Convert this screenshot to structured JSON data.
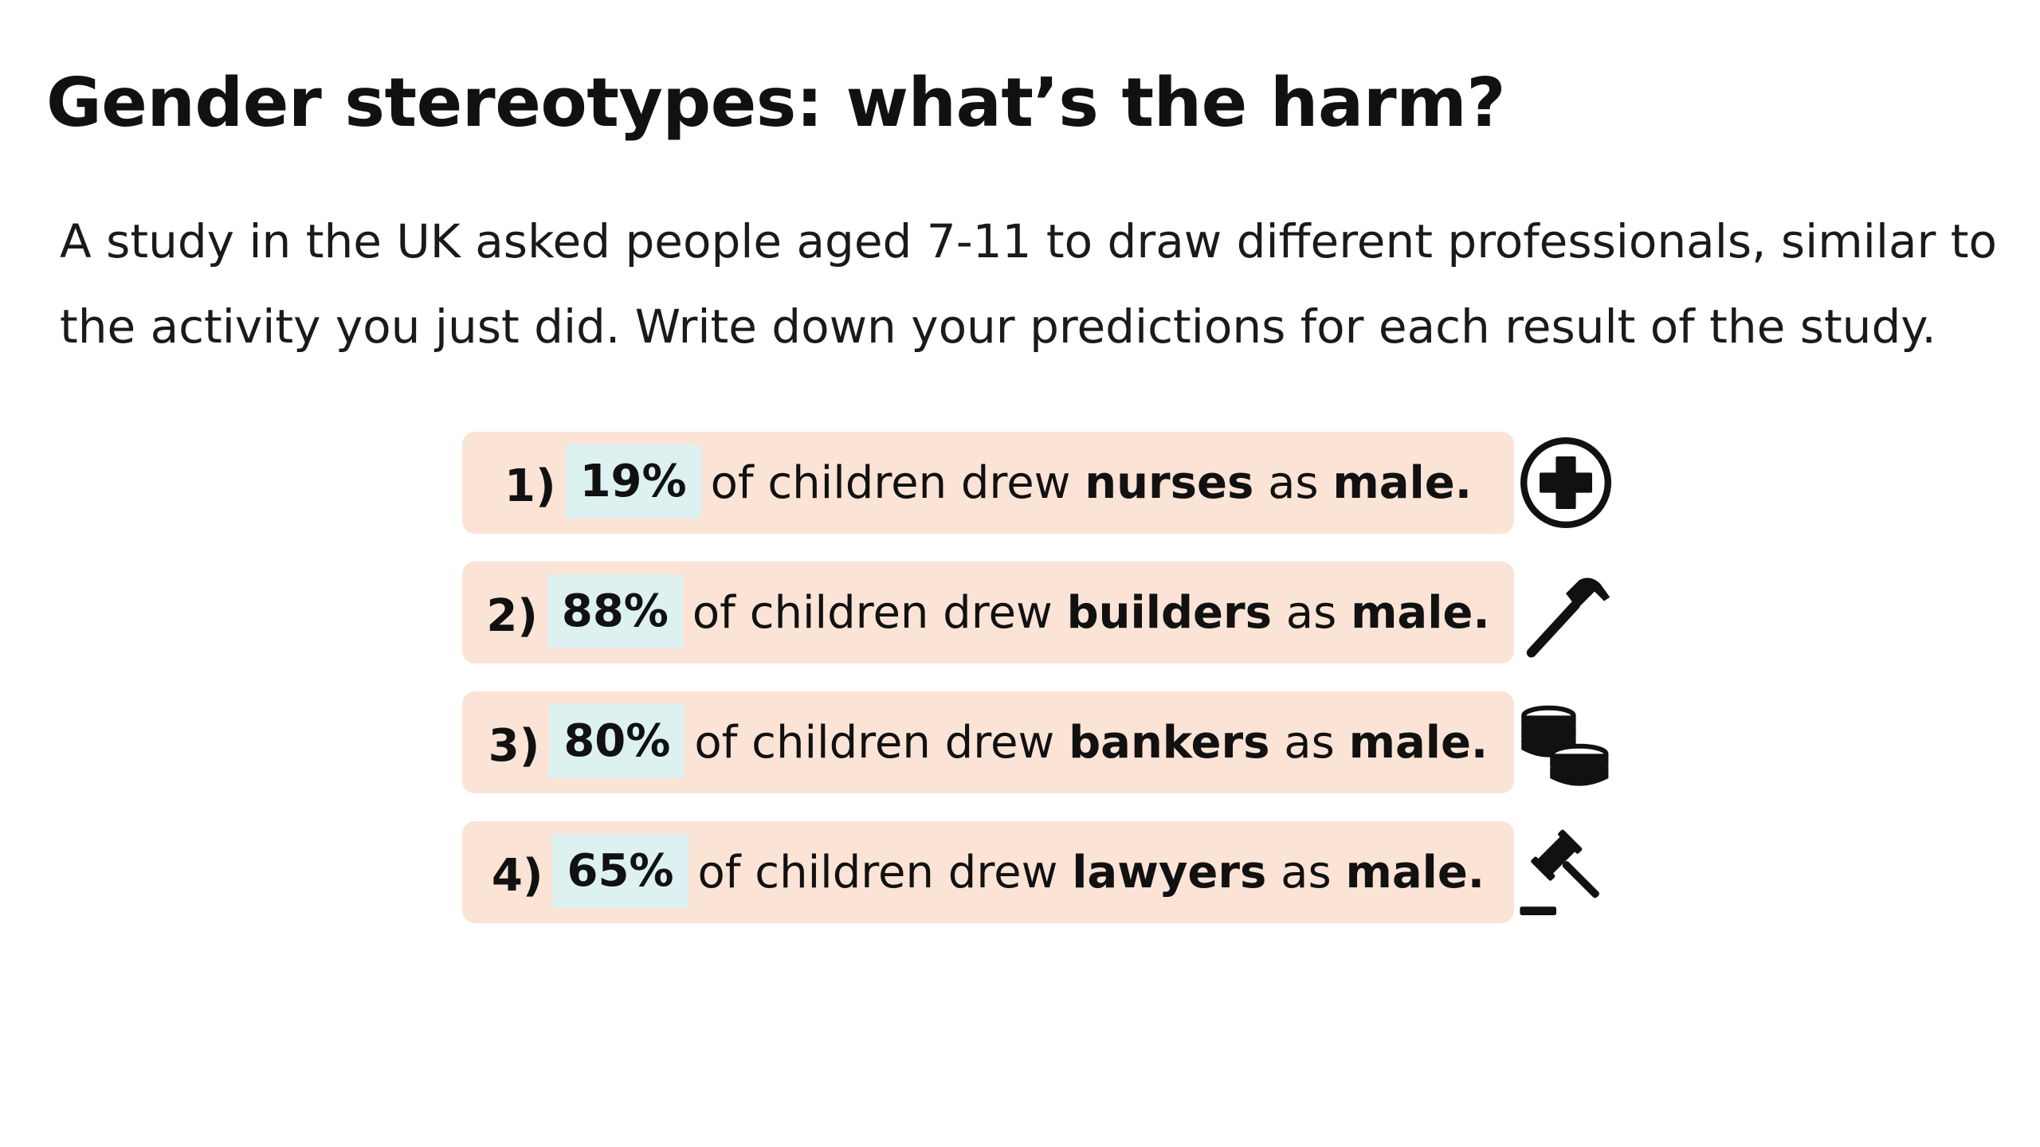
{
  "slide": {
    "title": "Gender stereotypes: what’s the harm?",
    "intro": "A study in the UK asked people aged 7-11 to draw different professionals, similar to the activity you just did. Write down your predictions for each result of the study."
  },
  "results": [
    {
      "number": "1)",
      "percent": "19%",
      "text_before": "of children drew",
      "profession": "nurses",
      "text_middle": "as",
      "gender": "male.",
      "icon": "medical-cross-icon"
    },
    {
      "number": "2)",
      "percent": "88%",
      "text_before": "of children drew",
      "profession": "builders",
      "text_middle": "as",
      "gender": "male.",
      "icon": "hammer-icon"
    },
    {
      "number": "3)",
      "percent": "80%",
      "text_before": "of children drew",
      "profession": "bankers",
      "text_middle": "as",
      "gender": "male.",
      "icon": "coins-icon"
    },
    {
      "number": "4)",
      "percent": "65%",
      "text_before": "of children drew",
      "profession": "lawyers",
      "text_middle": "as",
      "gender": "male.",
      "icon": "gavel-icon"
    }
  ],
  "colors": {
    "row_background": "#fbe3d6",
    "percent_highlight": "#dcf1f0",
    "text": "#111111"
  }
}
